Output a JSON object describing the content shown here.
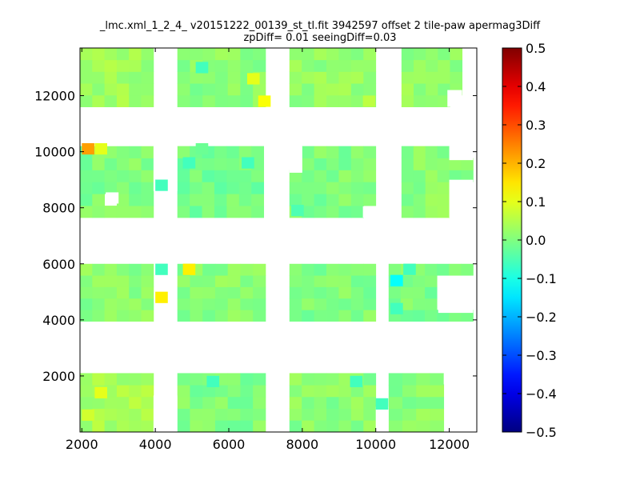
{
  "chart_data": {
    "type": "heatmap",
    "title": "_lmc.xml_1_2_4_ v20151222_00139_st_tl.fit 3942597 offset 2 tile-paw apermag3Diff",
    "subtitle": "zpDiff= 0.01 seeingDiff=0.03",
    "xlabel": "",
    "ylabel": "",
    "xlim": [
      1950,
      12750
    ],
    "ylim": [
      0,
      13700
    ],
    "x_ticks": [
      "2000",
      "4000",
      "6000",
      "8000",
      "10000",
      "12000"
    ],
    "y_ticks": [
      "2000",
      "4000",
      "6000",
      "8000",
      "10000",
      "12000"
    ],
    "colorbar": {
      "colormap": "jet",
      "range": [
        -0.5,
        0.5
      ],
      "ticks": [
        "0.5",
        "0.4",
        "0.3",
        "0.2",
        "0.1",
        "0.0",
        "−0.1",
        "−0.2",
        "−0.3",
        "−0.4",
        "−0.5"
      ]
    },
    "cell_size": [
      340,
      405
    ],
    "blocks": [
      {
        "x": [
          1950,
          3950
        ],
        "y": [
          0,
          2100
        ],
        "value": 0.04
      },
      {
        "x": [
          4600,
          7000
        ],
        "y": [
          0,
          2100
        ],
        "value": 0.0
      },
      {
        "x": [
          7650,
          10000
        ],
        "y": [
          0,
          2100
        ],
        "value": 0.01
      },
      {
        "x": [
          10350,
          11850
        ],
        "y": [
          0,
          2100
        ],
        "value": 0.01
      },
      {
        "x": [
          1950,
          3950
        ],
        "y": [
          3950,
          6000
        ],
        "value": 0.01
      },
      {
        "x": [
          4600,
          7000
        ],
        "y": [
          3950,
          6000
        ],
        "value": 0.01
      },
      {
        "x": [
          7650,
          10000
        ],
        "y": [
          3950,
          6000
        ],
        "value": 0.0
      },
      {
        "x": [
          10350,
          12650
        ],
        "y": [
          3950,
          6000
        ],
        "value": 0.0
      },
      {
        "x": [
          1950,
          3950
        ],
        "y": [
          7650,
          10200
        ],
        "value": 0.0
      },
      {
        "x": [
          4600,
          6950
        ],
        "y": [
          7650,
          10200
        ],
        "value": -0.01
      },
      {
        "x": [
          7650,
          10000
        ],
        "y": [
          7650,
          10200
        ],
        "value": 0.0
      },
      {
        "x": [
          10700,
          12650
        ],
        "y": [
          7650,
          10200
        ],
        "value": 0.01
      },
      {
        "x": [
          1950,
          3950
        ],
        "y": [
          11600,
          13700
        ],
        "value": 0.03
      },
      {
        "x": [
          4600,
          7000
        ],
        "y": [
          11600,
          13700
        ],
        "value": 0.01
      },
      {
        "x": [
          7650,
          10000
        ],
        "y": [
          11600,
          13700
        ],
        "value": 0.02
      },
      {
        "x": [
          10700,
          12350
        ],
        "y": [
          11600,
          13700
        ],
        "value": 0.02
      }
    ],
    "gaps": [
      {
        "x": [
          3950,
          4600
        ],
        "y": [
          0,
          1300
        ]
      },
      {
        "x": [
          10000,
          10350
        ],
        "y": [
          0,
          900
        ]
      },
      {
        "x": [
          11850,
          12650
        ],
        "y": [
          1700,
          2100
        ]
      },
      {
        "x": [
          11700,
          12650
        ],
        "y": [
          4250,
          5450
        ]
      },
      {
        "x": [
          2650,
          3000
        ],
        "y": [
          8150,
          8550
        ]
      },
      {
        "x": [
          3950,
          4600
        ],
        "y": [
          8600,
          10200
        ]
      },
      {
        "x": [
          7650,
          8000
        ],
        "y": [
          9250,
          10200
        ]
      },
      {
        "x": [
          9650,
          10000
        ],
        "y": [
          7650,
          8050
        ]
      },
      {
        "x": [
          12000,
          12650
        ],
        "y": [
          7650,
          9000
        ]
      },
      {
        "x": [
          12000,
          12650
        ],
        "y": [
          9700,
          10200
        ]
      },
      {
        "x": [
          2300,
          3950
        ],
        "y": [
          10200,
          10250
        ]
      },
      {
        "x": [
          11950,
          12350
        ],
        "y": [
          11600,
          12200
        ]
      }
    ],
    "special_cells": [
      {
        "x": 2000,
        "y": 9900,
        "value": 0.22
      },
      {
        "x": 2350,
        "y": 9900,
        "value": 0.1
      },
      {
        "x": 5100,
        "y": 9900,
        "value": -0.02
      },
      {
        "x": 4000,
        "y": 8600,
        "value": -0.06
      },
      {
        "x": 4750,
        "y": 9400,
        "value": -0.06
      },
      {
        "x": 6350,
        "y": 9400,
        "value": -0.06
      },
      {
        "x": 7700,
        "y": 7700,
        "value": -0.05
      },
      {
        "x": 4000,
        "y": 5600,
        "value": -0.06
      },
      {
        "x": 4000,
        "y": 4600,
        "value": 0.14
      },
      {
        "x": 4750,
        "y": 5600,
        "value": 0.14
      },
      {
        "x": 10400,
        "y": 5200,
        "value": -0.12
      },
      {
        "x": 10400,
        "y": 4200,
        "value": -0.06
      },
      {
        "x": 10750,
        "y": 5600,
        "value": -0.06
      },
      {
        "x": 10000,
        "y": 800,
        "value": -0.06
      },
      {
        "x": 5400,
        "y": 1600,
        "value": -0.06
      },
      {
        "x": 9300,
        "y": 1600,
        "value": -0.06
      },
      {
        "x": 6800,
        "y": 11600,
        "value": 0.12
      },
      {
        "x": 6500,
        "y": 12400,
        "value": 0.1
      },
      {
        "x": 5100,
        "y": 12800,
        "value": -0.06
      },
      {
        "x": 9650,
        "y": 11600,
        "value": 0.06
      },
      {
        "x": 2000,
        "y": 400,
        "value": 0.08
      },
      {
        "x": 2350,
        "y": 1200,
        "value": 0.1
      }
    ]
  }
}
